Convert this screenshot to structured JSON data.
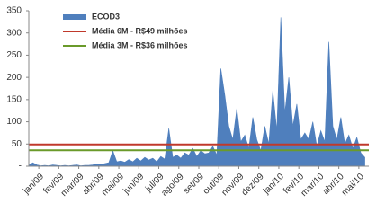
{
  "chart_data": {
    "type": "area",
    "xlim": [
      0,
      17
    ],
    "xticks": [
      {
        "value": 0.5,
        "label": "jan/09"
      },
      {
        "value": 1.5,
        "label": "fev/09"
      },
      {
        "value": 2.5,
        "label": "mar/09"
      },
      {
        "value": 3.5,
        "label": "abr/09"
      },
      {
        "value": 4.5,
        "label": "mai/09"
      },
      {
        "value": 5.5,
        "label": "jun/09"
      },
      {
        "value": 6.5,
        "label": "jul/09"
      },
      {
        "value": 7.5,
        "label": "ago/09"
      },
      {
        "value": 8.5,
        "label": "set/09"
      },
      {
        "value": 9.5,
        "label": "out/09"
      },
      {
        "value": 10.5,
        "label": "nov/09"
      },
      {
        "value": 11.5,
        "label": "dez/09"
      },
      {
        "value": 12.5,
        "label": "jan/10"
      },
      {
        "value": 13.5,
        "label": "fev/10"
      },
      {
        "value": 14.5,
        "label": "mar/10"
      },
      {
        "value": 15.5,
        "label": "abr/10"
      },
      {
        "value": 16.5,
        "label": "mai/10"
      }
    ],
    "ylim": [
      0,
      350
    ],
    "yticks": [
      {
        "value": 0,
        "label": "-"
      },
      50,
      100,
      150,
      200,
      250,
      300,
      350
    ],
    "series": [
      {
        "name": "ECOD3",
        "color": "#4f7fbd",
        "x": [
          0,
          0.2,
          0.4,
          0.6,
          0.8,
          1,
          1.2,
          1.4,
          1.6,
          1.8,
          2,
          2.2,
          2.4,
          2.6,
          2.8,
          3,
          3.2,
          3.4,
          3.6,
          3.8,
          4,
          4.2,
          4.4,
          4.6,
          4.8,
          5,
          5.2,
          5.4,
          5.6,
          5.8,
          6,
          6.2,
          6.4,
          6.6,
          6.8,
          7,
          7.2,
          7.4,
          7.6,
          7.8,
          8,
          8.2,
          8.4,
          8.6,
          8.8,
          9,
          9.2,
          9.4,
          9.6,
          9.8,
          10,
          10.2,
          10.4,
          10.6,
          10.8,
          11,
          11.2,
          11.4,
          11.6,
          11.8,
          12,
          12.2,
          12.4,
          12.6,
          12.8,
          13,
          13.2,
          13.4,
          13.6,
          13.8,
          14,
          14.2,
          14.4,
          14.6,
          14.8,
          15,
          15.2,
          15.4,
          15.6,
          15.8,
          16,
          16.2,
          16.4,
          16.6,
          16.8
        ],
        "values": [
          2,
          8,
          3,
          1,
          2,
          1,
          3,
          2,
          1,
          2,
          1,
          2,
          3,
          1,
          2,
          2,
          3,
          5,
          4,
          6,
          8,
          35,
          10,
          12,
          9,
          15,
          10,
          18,
          12,
          20,
          14,
          18,
          10,
          22,
          16,
          85,
          20,
          25,
          18,
          30,
          25,
          40,
          22,
          35,
          28,
          30,
          45,
          25,
          220,
          160,
          90,
          60,
          130,
          55,
          70,
          40,
          110,
          60,
          35,
          90,
          50,
          170,
          80,
          335,
          120,
          200,
          90,
          140,
          60,
          75,
          60,
          100,
          45,
          80,
          55,
          280,
          90,
          60,
          110,
          50,
          70,
          40,
          65,
          30,
          20
        ]
      }
    ],
    "hlines": [
      {
        "name": "Média 6M - R$49 milhões",
        "value": 49,
        "color": "#c0392b"
      },
      {
        "name": "Média 3M - R$36 milhões",
        "value": 36,
        "color": "#6a9a2a"
      }
    ]
  }
}
